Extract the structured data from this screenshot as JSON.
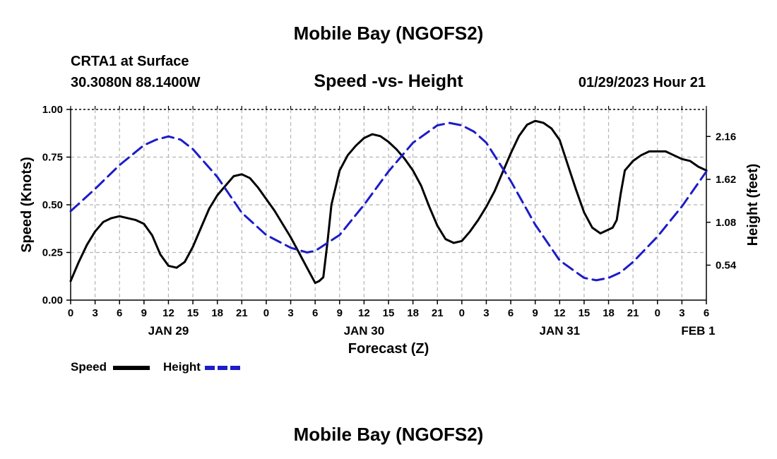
{
  "page": {
    "title_top": "Mobile Bay (NGOFS2)",
    "title_bottom": "Mobile Bay (NGOFS2)",
    "station": "CRTA1 at Surface",
    "coords": "30.3080N  88.1400W",
    "subtitle": "Speed -vs- Height",
    "timestamp": "01/29/2023 Hour 21"
  },
  "legend": {
    "speed_label": "Speed",
    "height_label": "Height"
  },
  "colors": {
    "speed": "#000000",
    "height": "#1c1cc8",
    "grid": "#b4b4b4"
  },
  "chart_data": {
    "type": "line",
    "title": "Speed -vs- Height",
    "xlabel": "Forecast (Z)",
    "ylabel": "Speed (Knots)",
    "y2label": "Height (feet)",
    "x_unit": "forecast hour",
    "xlim": [
      0,
      78
    ],
    "ylim": [
      0,
      1.0
    ],
    "y2lim": [
      0.1,
      2.5
    ],
    "x_ticks": [
      0,
      3,
      6,
      9,
      12,
      15,
      18,
      21,
      24,
      27,
      30,
      33,
      36,
      39,
      42,
      45,
      48,
      51,
      54,
      57,
      60,
      63,
      66,
      69,
      72,
      75,
      78
    ],
    "x_tick_labels": [
      "0",
      "3",
      "6",
      "9",
      "12",
      "15",
      "18",
      "21",
      "0",
      "3",
      "6",
      "9",
      "12",
      "15",
      "18",
      "21",
      "0",
      "3",
      "6",
      "9",
      "12",
      "15",
      "18",
      "21",
      "0",
      "3",
      "6"
    ],
    "date_labels": [
      {
        "x": 12,
        "label": "JAN 29"
      },
      {
        "x": 36,
        "label": "JAN 30"
      },
      {
        "x": 60,
        "label": "JAN 31"
      },
      {
        "x": 77,
        "label": "FEB 1"
      }
    ],
    "y_ticks": [
      0.0,
      0.25,
      0.5,
      0.75,
      1.0
    ],
    "y_tick_labels": [
      "0.00",
      "0.25",
      "0.50",
      "0.75",
      "1.00"
    ],
    "y2_ticks": [
      0.54,
      1.08,
      1.62,
      2.16
    ],
    "y2_tick_labels": [
      "0.54",
      "1.08",
      "1.62",
      "2.16"
    ],
    "grid": true,
    "legend_position": "bottom-left",
    "series": [
      {
        "name": "Speed",
        "axis": "left",
        "style": "solid",
        "x": [
          0,
          1,
          2,
          3,
          4,
          5,
          6,
          7,
          8,
          9,
          10,
          11,
          12,
          13,
          14,
          15,
          16,
          17,
          18,
          19,
          20,
          21,
          22,
          23,
          24,
          25,
          26,
          27,
          28,
          29,
          30,
          30.5,
          31,
          31.5,
          32,
          33,
          34,
          35,
          36,
          37,
          38,
          39,
          40,
          41,
          42,
          43,
          44,
          45,
          46,
          47,
          48,
          49,
          50,
          51,
          52,
          53,
          54,
          55,
          56,
          57,
          58,
          59,
          60,
          61,
          62,
          63,
          64,
          65,
          66,
          66.5,
          67,
          67.5,
          68,
          69,
          70,
          71,
          72,
          73,
          74,
          75,
          76,
          77,
          78
        ],
        "values": [
          0.1,
          0.2,
          0.29,
          0.36,
          0.41,
          0.43,
          0.44,
          0.43,
          0.42,
          0.4,
          0.34,
          0.24,
          0.18,
          0.17,
          0.2,
          0.28,
          0.38,
          0.48,
          0.55,
          0.6,
          0.65,
          0.66,
          0.64,
          0.59,
          0.53,
          0.47,
          0.4,
          0.33,
          0.25,
          0.17,
          0.09,
          0.1,
          0.12,
          0.3,
          0.5,
          0.68,
          0.76,
          0.81,
          0.85,
          0.87,
          0.86,
          0.83,
          0.79,
          0.74,
          0.68,
          0.6,
          0.49,
          0.39,
          0.32,
          0.3,
          0.31,
          0.36,
          0.42,
          0.49,
          0.57,
          0.67,
          0.77,
          0.86,
          0.92,
          0.94,
          0.93,
          0.9,
          0.84,
          0.71,
          0.58,
          0.46,
          0.38,
          0.35,
          0.37,
          0.38,
          0.42,
          0.56,
          0.68,
          0.73,
          0.76,
          0.78,
          0.78,
          0.78,
          0.76,
          0.74,
          0.73,
          0.7,
          0.68
        ]
      },
      {
        "name": "Height",
        "axis": "right",
        "style": "dashed",
        "x": [
          0,
          3,
          6,
          9,
          10.5,
          12,
          13.5,
          15,
          18,
          21,
          24,
          27,
          29,
          30,
          33,
          36,
          39,
          42,
          45,
          46.5,
          48,
          49.5,
          51,
          54,
          57,
          60,
          63,
          64.5,
          66,
          67.5,
          69,
          72,
          75,
          78
        ],
        "values": [
          1.22,
          1.5,
          1.8,
          2.05,
          2.12,
          2.16,
          2.12,
          2.0,
          1.65,
          1.2,
          0.92,
          0.76,
          0.7,
          0.72,
          0.92,
          1.3,
          1.72,
          2.08,
          2.3,
          2.33,
          2.3,
          2.22,
          2.08,
          1.6,
          1.05,
          0.6,
          0.38,
          0.35,
          0.38,
          0.45,
          0.58,
          0.9,
          1.28,
          1.72
        ]
      }
    ]
  }
}
